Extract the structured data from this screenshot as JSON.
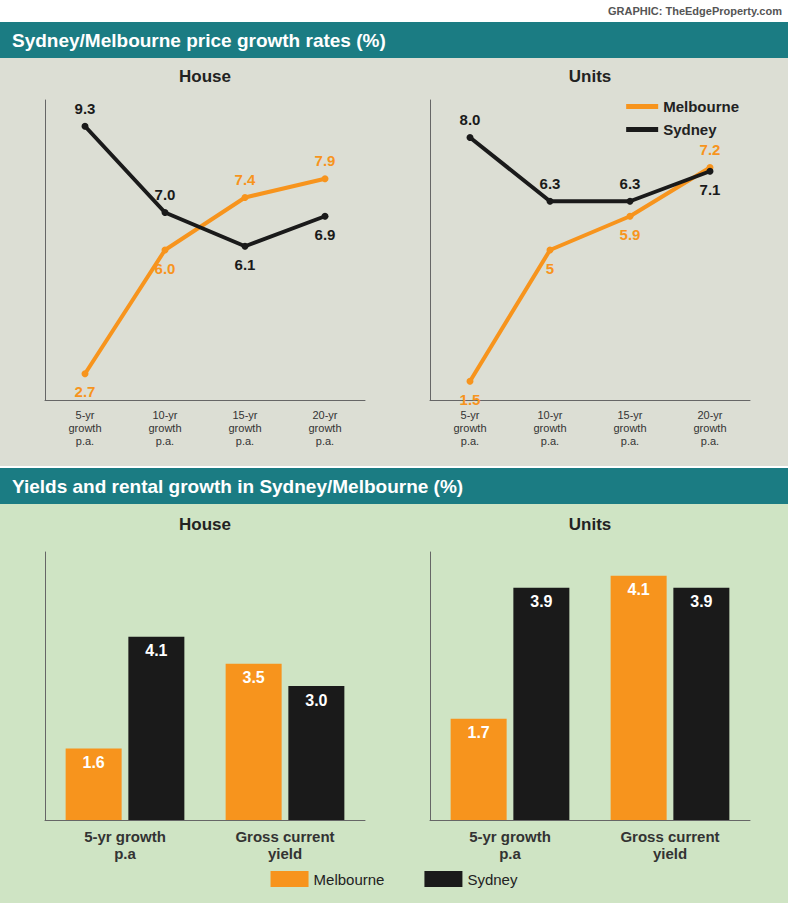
{
  "credit": "GRAPHIC: TheEdgeProperty.com",
  "chart_data": [
    {
      "type": "line",
      "title": "Sydney/Melbourne price growth rates (%)",
      "subtitle": "House",
      "categories": [
        "5-yr growth p.a.",
        "10-yr growth p.a.",
        "15-yr growth p.a.",
        "20-yr growth p.a."
      ],
      "ylim": [
        2,
        10
      ],
      "tick_labels": "x",
      "grid": false,
      "data_labels": true,
      "series": [
        {
          "name": "Melbourne",
          "color": "#f7941d",
          "values": [
            2.7,
            6.0,
            7.4,
            7.9
          ],
          "value_labels": [
            "2.7",
            "6.0",
            "7.4",
            "7.9"
          ]
        },
        {
          "name": "Sydney",
          "color": "#1a1a1a",
          "values": [
            9.3,
            7.0,
            6.1,
            6.9
          ],
          "value_labels": [
            "9.3",
            "7.0",
            "6.1",
            "6.9"
          ]
        }
      ]
    },
    {
      "type": "line",
      "title": "Sydney/Melbourne price growth rates (%)",
      "subtitle": "Units",
      "categories": [
        "5-yr growth p.a.",
        "10-yr growth p.a.",
        "15-yr growth p.a.",
        "20-yr growth p.a."
      ],
      "ylim": [
        1,
        9
      ],
      "tick_labels": "x",
      "grid": false,
      "data_labels": true,
      "legend": "upper right",
      "series": [
        {
          "name": "Melbourne",
          "color": "#f7941d",
          "values": [
            1.5,
            5,
            5.9,
            7.2
          ]
        },
        {
          "name": "Sydney",
          "color": "#1a1a1a",
          "values": [
            8.0,
            6.3,
            6.3,
            7.1
          ],
          "value_labels": [
            "8.0",
            "6.3",
            "6.3",
            "7.1"
          ]
        }
      ]
    },
    {
      "type": "bar",
      "title": "Yields and rental growth in Sydney/Melbourne (%)",
      "subtitle": "House",
      "categories": [
        "5-yr growth p.a",
        "Gross current yield"
      ],
      "ylim": [
        0,
        6
      ],
      "tick_labels": "x",
      "grid": false,
      "data_labels": true,
      "legend": "bottom",
      "series": [
        {
          "name": "Melbourne",
          "color": "#f7941d",
          "values": [
            1.6,
            3.5
          ]
        },
        {
          "name": "Sydney",
          "color": "#1a1a1a",
          "values": [
            4.1,
            3.0
          ],
          "value_labels": [
            "4.1",
            "3.0"
          ]
        }
      ]
    },
    {
      "type": "bar",
      "title": "Yields and rental growth in Sydney/Melbourne (%)",
      "subtitle": "Units",
      "categories": [
        "5-yr growth p.a",
        "Gross current yield"
      ],
      "ylim": [
        0,
        4.5
      ],
      "tick_labels": "x",
      "grid": false,
      "data_labels": true,
      "legend": "bottom",
      "series": [
        {
          "name": "Melbourne",
          "color": "#f7941d",
          "values": [
            1.7,
            4.1
          ]
        },
        {
          "name": "Sydney",
          "color": "#1a1a1a",
          "values": [
            3.9,
            3.9
          ]
        }
      ]
    }
  ]
}
